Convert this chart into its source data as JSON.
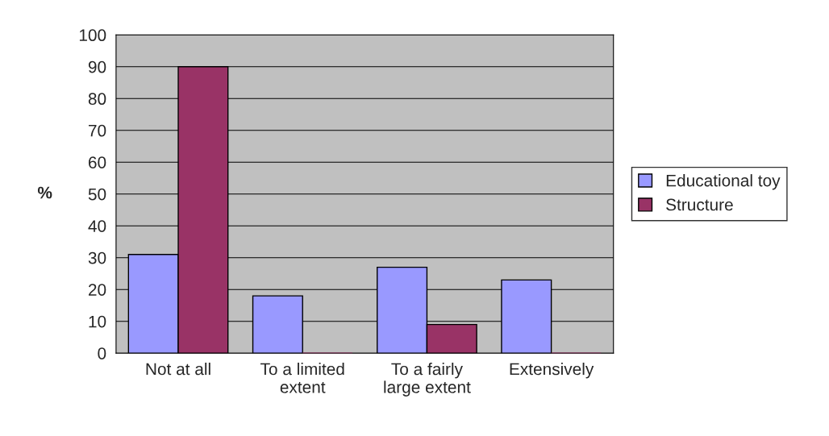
{
  "chart_data": {
    "type": "bar",
    "ylabel": "%",
    "categories": [
      "Not at all",
      "To a limited\nextent",
      "To a fairly\nlarge extent",
      "Extensively"
    ],
    "series": [
      {
        "name": "Educational toy",
        "color": "#9999ff",
        "values": [
          31,
          18,
          27,
          23
        ]
      },
      {
        "name": "Structure",
        "color": "#993366",
        "values": [
          90,
          0,
          9,
          0
        ]
      }
    ],
    "ylim": [
      0,
      100
    ],
    "yticks": [
      0,
      10,
      20,
      30,
      40,
      50,
      60,
      70,
      80,
      90,
      100
    ],
    "grid": "y",
    "legend": "right"
  }
}
